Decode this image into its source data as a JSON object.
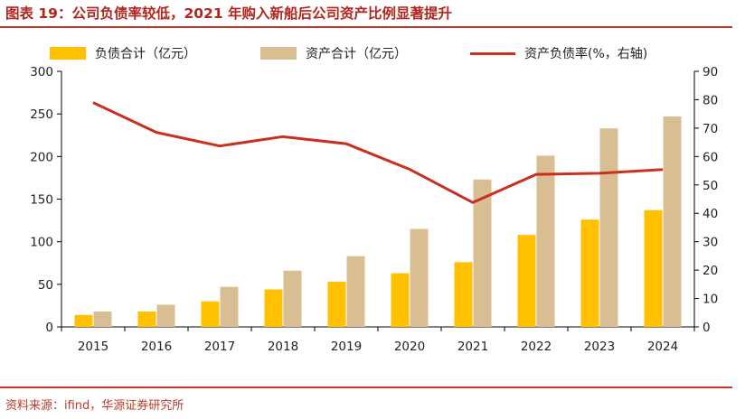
{
  "header": {
    "title": "图表 19：公司负债率较低，2021 年购入新船后公司资产比例显著提升"
  },
  "footer": {
    "source": "资料来源：ifind，华源证券研究所"
  },
  "colors": {
    "accent": "#c0392b",
    "liabilities": "#ffc000",
    "assets": "#d9bd93",
    "ratio_line": "#c9301e"
  },
  "chart_data": {
    "type": "bar",
    "categories": [
      "2015",
      "2016",
      "2017",
      "2018",
      "2019",
      "2020",
      "2021",
      "2022",
      "2023",
      "2024"
    ],
    "series": [
      {
        "name": "负债合计（亿元）",
        "type": "bar",
        "axis": "left",
        "values": [
          14,
          18,
          30,
          44,
          53,
          63,
          76,
          108,
          126,
          137
        ]
      },
      {
        "name": "资产合计（亿元）",
        "type": "bar",
        "axis": "left",
        "values": [
          18,
          26,
          47,
          66,
          83,
          115,
          173,
          201,
          233,
          247
        ]
      },
      {
        "name": "资产负债率(%，右轴)",
        "type": "line",
        "axis": "right",
        "values": [
          79,
          68.5,
          63.7,
          67,
          64.5,
          55.5,
          43.8,
          53.7,
          54.1,
          55.4
        ]
      }
    ],
    "left_axis": {
      "min": 0,
      "max": 300,
      "ticks": [
        0,
        50,
        100,
        150,
        200,
        250,
        300
      ]
    },
    "right_axis": {
      "min": 0,
      "max": 90,
      "ticks": [
        0,
        10,
        20,
        30,
        40,
        50,
        60,
        70,
        80,
        90
      ]
    },
    "legend_position": "top",
    "grid": false
  }
}
